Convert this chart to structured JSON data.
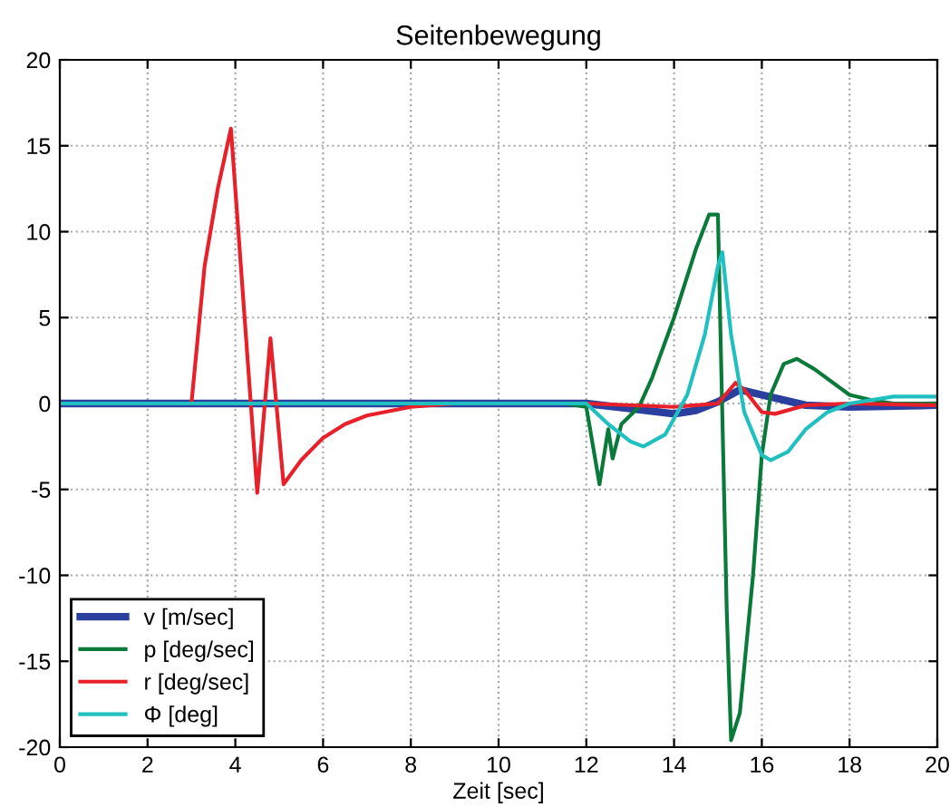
{
  "chart_data": {
    "type": "line",
    "title": "Seitenbewegung",
    "xlabel": "Zeit [sec]",
    "xlim": [
      0,
      20
    ],
    "ylim": [
      -20,
      20
    ],
    "xticks": [
      0,
      2,
      4,
      6,
      8,
      10,
      12,
      14,
      16,
      18,
      20
    ],
    "yticks": [
      -20,
      -15,
      -10,
      -5,
      0,
      5,
      10,
      15,
      20
    ],
    "grid": true,
    "legend": "bottom left",
    "line_style": "solid",
    "series": [
      {
        "name": "v [m/sec]",
        "color": "#2b3f9e",
        "x": [
          0,
          12,
          13,
          14,
          14.5,
          15,
          15.5,
          16,
          17,
          18,
          20
        ],
        "values": [
          0,
          0,
          -0.3,
          -0.6,
          -0.4,
          0.1,
          0.8,
          0.5,
          -0.1,
          -0.2,
          -0.1
        ]
      },
      {
        "name": "p [deg/sec]",
        "color": "#0a7a3a",
        "x": [
          0,
          11.5,
          12,
          12.3,
          12.5,
          12.6,
          12.8,
          13.2,
          13.5,
          14,
          14.5,
          14.8,
          15,
          15.05,
          15.2,
          15.3,
          15.5,
          15.8,
          16,
          16.2,
          16.5,
          16.8,
          17.2,
          18,
          18.5,
          19,
          20
        ],
        "values": [
          0,
          0,
          -0.2,
          -4.7,
          -1.5,
          -3.2,
          -1.2,
          -0.2,
          1.5,
          5,
          9,
          11,
          11,
          5,
          -12,
          -19.6,
          -18,
          -10,
          -3,
          0.5,
          2.3,
          2.6,
          2,
          0.5,
          0.2,
          0,
          0
        ]
      },
      {
        "name": "r [deg/sec]",
        "color": "#e8202a",
        "x": [
          0,
          3,
          3.3,
          3.6,
          3.9,
          4.5,
          4.8,
          5.1,
          5.5,
          6,
          6.5,
          7,
          8,
          9,
          12,
          14,
          15,
          15.4,
          15.6,
          16,
          16.3,
          17,
          18,
          20
        ],
        "values": [
          0,
          0,
          8,
          12.5,
          16,
          -5.2,
          3.8,
          -4.7,
          -3.3,
          -2,
          -1.2,
          -0.7,
          -0.2,
          0,
          0,
          -0.2,
          0,
          1.2,
          0.8,
          -0.5,
          -0.6,
          -0.1,
          0,
          -0.1
        ]
      },
      {
        "name": "Φ [deg]",
        "color": "#20c0c0",
        "x": [
          0,
          12,
          12.5,
          13,
          13.3,
          13.8,
          14.3,
          14.7,
          15,
          15.1,
          15.3,
          15.6,
          16,
          16.2,
          16.6,
          17,
          17.5,
          18,
          19,
          20
        ],
        "values": [
          0,
          0,
          -1.2,
          -2.2,
          -2.5,
          -1.8,
          0.5,
          4,
          8,
          8.8,
          4,
          -0.5,
          -3,
          -3.3,
          -2.8,
          -1.5,
          -0.5,
          0,
          0.4,
          0.4
        ]
      }
    ]
  }
}
